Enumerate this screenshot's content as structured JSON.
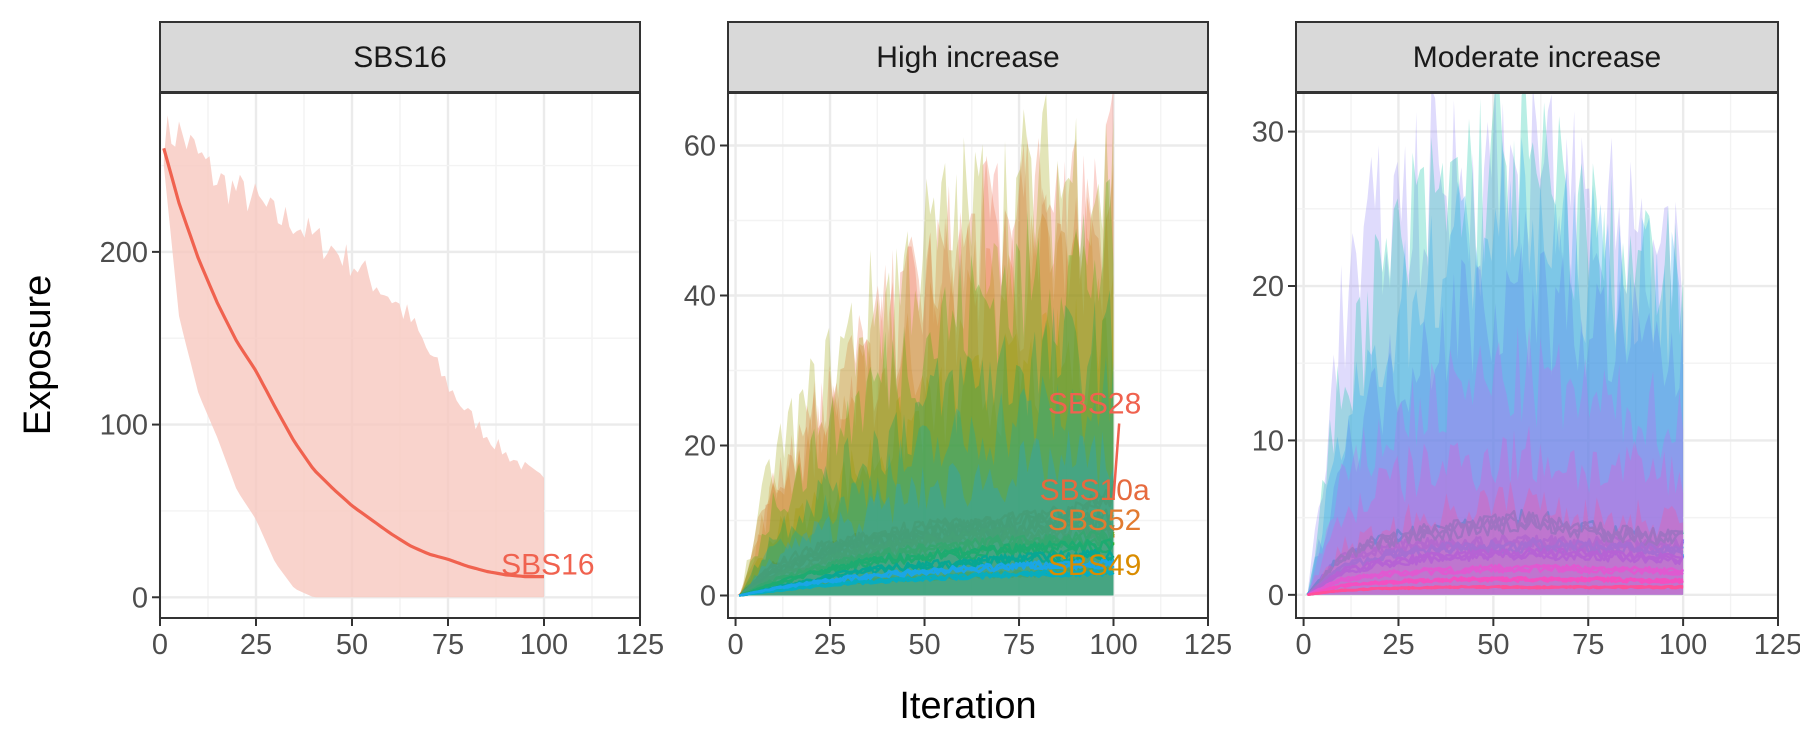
{
  "chart_data": [
    {
      "type": "line",
      "title": "SBS16",
      "xlim": [
        0,
        125
      ],
      "ylim": [
        -12,
        292
      ],
      "xticks": [
        0,
        25,
        50,
        75,
        100,
        125
      ],
      "yticks": [
        0,
        100,
        200
      ],
      "grid": true,
      "series": [
        {
          "name": "SBS16",
          "color": "#f0624f",
          "band_color": "#f8c8bf",
          "x": [
            1,
            5,
            10,
            15,
            20,
            25,
            30,
            35,
            40,
            45,
            50,
            55,
            60,
            65,
            70,
            75,
            80,
            85,
            90,
            95,
            100
          ],
          "y": [
            260,
            228,
            196,
            170,
            148,
            131,
            110,
            90,
            74,
            63,
            53,
            45,
            37,
            30,
            25,
            22,
            18,
            15,
            13,
            12,
            12
          ],
          "upper": [
            270,
            272,
            258,
            244,
            238,
            232,
            222,
            220,
            210,
            204,
            196,
            186,
            176,
            163,
            143,
            124,
            108,
            95,
            84,
            76,
            68
          ],
          "lower": [
            250,
            162,
            118,
            92,
            62,
            45,
            20,
            5,
            0,
            0,
            0,
            0,
            0,
            0,
            0,
            0,
            0,
            0,
            0,
            0,
            0
          ]
        }
      ]
    },
    {
      "type": "line",
      "title": "High increase",
      "xlim": [
        -2,
        125
      ],
      "ylim": [
        -3,
        67
      ],
      "xticks": [
        0,
        25,
        50,
        75,
        100,
        125
      ],
      "yticks": [
        0,
        20,
        40,
        60
      ],
      "grid": true,
      "series": [
        {
          "name": "SBS28",
          "color": "#f0624f",
          "x": [
            1,
            10,
            20,
            30,
            40,
            50,
            60,
            70,
            80,
            90,
            100
          ],
          "y": [
            0,
            4,
            6,
            7,
            8,
            9,
            9,
            9.5,
            10,
            11,
            13
          ],
          "upper": [
            0,
            14,
            22,
            28,
            34,
            40,
            44,
            48,
            50,
            52,
            56
          ]
        },
        {
          "name": "SBS10a",
          "color": "#e66a3e",
          "x": [
            1,
            10,
            20,
            30,
            40,
            50,
            60,
            70,
            80,
            90,
            100
          ],
          "y": [
            0,
            3,
            5,
            6.5,
            7.5,
            8,
            8.5,
            9,
            9.5,
            10,
            10
          ],
          "upper": [
            0,
            16,
            24,
            30,
            36,
            42,
            46,
            48,
            50,
            52,
            54
          ]
        },
        {
          "name": "SBS52",
          "color": "#e27b30",
          "x": [
            1,
            10,
            20,
            30,
            40,
            50,
            60,
            70,
            80,
            90,
            100
          ],
          "y": [
            0,
            2.5,
            4,
            5.5,
            6.5,
            7,
            7.5,
            8,
            8,
            8.5,
            8.5
          ],
          "upper": [
            0,
            14,
            20,
            26,
            30,
            34,
            38,
            40,
            42,
            44,
            46
          ]
        },
        {
          "name": "SBS49",
          "color": "#d98c00",
          "x": [
            1,
            10,
            20,
            30,
            40,
            50,
            60,
            70,
            80,
            90,
            100
          ],
          "y": [
            0,
            0.8,
            1.4,
            1.8,
            2.1,
            2.4,
            2.6,
            2.8,
            3,
            3.2,
            3.4
          ],
          "upper": [
            0,
            8,
            12,
            16,
            20,
            24,
            26,
            28,
            30,
            32,
            34
          ]
        },
        {
          "name": "",
          "color": "#9aa000",
          "x": [
            1,
            10,
            20,
            30,
            40,
            50,
            60,
            70,
            80,
            90,
            100
          ],
          "y": [
            0,
            2,
            3.5,
            4.5,
            5.5,
            6,
            6.5,
            7,
            7,
            7.5,
            7.5
          ],
          "upper": [
            0,
            18,
            26,
            34,
            40,
            46,
            50,
            52,
            54,
            56,
            56
          ]
        },
        {
          "name": "",
          "color": "#3db000",
          "x": [
            1,
            10,
            20,
            30,
            40,
            50,
            60,
            70,
            80,
            90,
            100
          ],
          "y": [
            0,
            1.5,
            3,
            4,
            4.8,
            5.2,
            5.6,
            6,
            6.2,
            6.4,
            6.5
          ],
          "upper": [
            0,
            12,
            18,
            24,
            30,
            34,
            38,
            40,
            42,
            44,
            45
          ]
        },
        {
          "name": "",
          "color": "#00a65a",
          "x": [
            1,
            10,
            20,
            30,
            40,
            50,
            60,
            70,
            80,
            90,
            100
          ],
          "y": [
            0,
            1,
            2,
            3,
            3.6,
            4,
            4.4,
            4.7,
            5,
            5.2,
            5.4
          ],
          "upper": [
            0,
            8,
            13,
            17,
            21,
            25,
            28,
            30,
            31,
            32,
            33
          ]
        },
        {
          "name": "",
          "color": "#00b0b0",
          "x": [
            1,
            10,
            20,
            30,
            40,
            50,
            60,
            70,
            80,
            90,
            100
          ],
          "y": [
            0,
            0.6,
            1.2,
            1.7,
            2,
            2.3,
            2.5,
            2.7,
            2.9,
            3,
            3.1
          ],
          "upper": [
            0,
            6,
            10,
            13,
            16,
            19,
            21,
            23,
            24,
            25,
            26
          ]
        },
        {
          "name": "",
          "color": "#1aa6e6",
          "x": [
            1,
            10,
            20,
            30,
            40,
            50,
            60,
            70,
            80,
            90,
            100
          ],
          "y": [
            0,
            0.9,
            1.7,
            2.3,
            2.8,
            3.2,
            3.5,
            3.8,
            4,
            4.1,
            4.2
          ],
          "upper": [
            0,
            5,
            8,
            10,
            12,
            14,
            15,
            16,
            17,
            18,
            18
          ]
        }
      ]
    },
    {
      "type": "line",
      "title": "Moderate increase",
      "xlim": [
        -2,
        125
      ],
      "ylim": [
        -1.5,
        32.5
      ],
      "xticks": [
        0,
        25,
        50,
        75,
        100,
        125
      ],
      "yticks": [
        0,
        10,
        20,
        30
      ],
      "grid": true,
      "series": [
        {
          "name": "",
          "color": "#8c7cf5",
          "x": [
            1,
            10,
            20,
            30,
            40,
            50,
            60,
            70,
            80,
            90,
            100
          ],
          "y": [
            0,
            2.5,
            3,
            3.2,
            3.3,
            3.4,
            3.4,
            3.3,
            3.3,
            3.2,
            3.2
          ],
          "upper": [
            0,
            18,
            24,
            26,
            27,
            28,
            27,
            26,
            24,
            22,
            20
          ]
        },
        {
          "name": "",
          "color": "#00c2a0",
          "x": [
            1,
            10,
            20,
            30,
            40,
            50,
            60,
            70,
            80,
            90,
            100
          ],
          "y": [
            0,
            2.5,
            3.5,
            4,
            4.2,
            4.5,
            5,
            4.4,
            4,
            3.8,
            3.6
          ],
          "upper": [
            0,
            14,
            20,
            24,
            26,
            28,
            27,
            25,
            22,
            21,
            20
          ]
        },
        {
          "name": "",
          "color": "#22a7f0",
          "x": [
            1,
            10,
            20,
            30,
            40,
            50,
            60,
            70,
            80,
            90,
            100
          ],
          "y": [
            0,
            1.8,
            2.5,
            2.8,
            3,
            3.1,
            3.2,
            3.1,
            3,
            2.9,
            2.8
          ],
          "upper": [
            0,
            10,
            16,
            20,
            22,
            24,
            24,
            22,
            21,
            20,
            19
          ]
        },
        {
          "name": "",
          "color": "#5b7cf5",
          "x": [
            1,
            10,
            20,
            30,
            40,
            50,
            60,
            70,
            80,
            90,
            100
          ],
          "y": [
            0,
            1.5,
            2,
            2.3,
            2.5,
            2.6,
            2.7,
            2.6,
            2.5,
            2.4,
            2.3
          ],
          "upper": [
            0,
            9,
            13,
            16,
            18,
            19,
            19,
            18,
            17,
            16,
            15
          ]
        },
        {
          "name": "",
          "color": "#c964f0",
          "x": [
            1,
            10,
            20,
            30,
            40,
            50,
            60,
            70,
            80,
            90,
            100
          ],
          "y": [
            0,
            1,
            1.3,
            1.5,
            1.6,
            1.7,
            1.7,
            1.7,
            1.6,
            1.6,
            1.5
          ],
          "upper": [
            0,
            7,
            10,
            12,
            13,
            14,
            14,
            13,
            12,
            12,
            11
          ]
        },
        {
          "name": "",
          "color": "#f04fd0",
          "x": [
            1,
            10,
            20,
            30,
            40,
            50,
            60,
            70,
            80,
            90,
            100
          ],
          "y": [
            0,
            0.6,
            0.8,
            0.9,
            1,
            1,
            1,
            1,
            1,
            0.9,
            0.9
          ],
          "upper": [
            0,
            5,
            7,
            8,
            8.5,
            9,
            9,
            8.5,
            8,
            8,
            7.5
          ]
        },
        {
          "name": "",
          "color": "#ff4f9a",
          "x": [
            1,
            10,
            20,
            30,
            40,
            50,
            60,
            70,
            80,
            90,
            100
          ],
          "y": [
            0,
            0.3,
            0.4,
            0.45,
            0.5,
            0.5,
            0.5,
            0.5,
            0.5,
            0.5,
            0.5
          ],
          "upper": [
            0,
            3,
            4,
            5,
            5.5,
            6,
            6,
            5.5,
            5,
            5,
            5
          ]
        }
      ]
    }
  ],
  "axes": {
    "xlabel": "Iteration",
    "ylabel": "Exposure"
  }
}
